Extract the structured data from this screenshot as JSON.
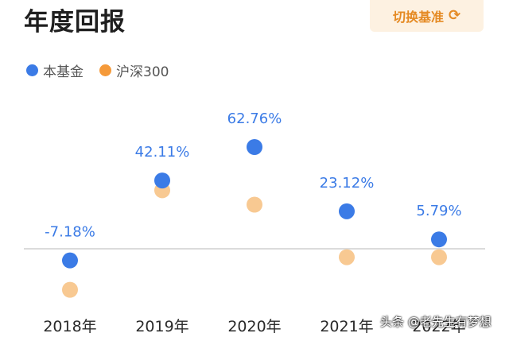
{
  "header": {
    "title": "年度回报",
    "switch_label": "切换基准",
    "switch_icon": "refresh-icon"
  },
  "colors": {
    "fund": "#3b7be6",
    "benchmark": "#f8c992",
    "benchmark_legend": "#f59a3a",
    "label": "#3b7be6",
    "axis": "#cfcfcf"
  },
  "watermark": "头条 @老先生有梦想",
  "chart_data": {
    "type": "scatter",
    "categories": [
      "2018年",
      "2019年",
      "2020年",
      "2021年",
      "2022年"
    ],
    "legend": [
      "本基金",
      "沪深300"
    ],
    "series": [
      {
        "name": "本基金",
        "values": [
          -7.18,
          42.11,
          62.76,
          23.12,
          5.79
        ],
        "labels": [
          "-7.18%",
          "42.11%",
          "62.76%",
          "23.12%",
          "5.79%"
        ]
      },
      {
        "name": "沪深300",
        "values": [
          -25.31,
          36.07,
          27.21,
          -5.2,
          -5.2
        ]
      }
    ],
    "ylim": [
      -40,
      80
    ],
    "baseline": 0,
    "legend_position": "top-left"
  }
}
